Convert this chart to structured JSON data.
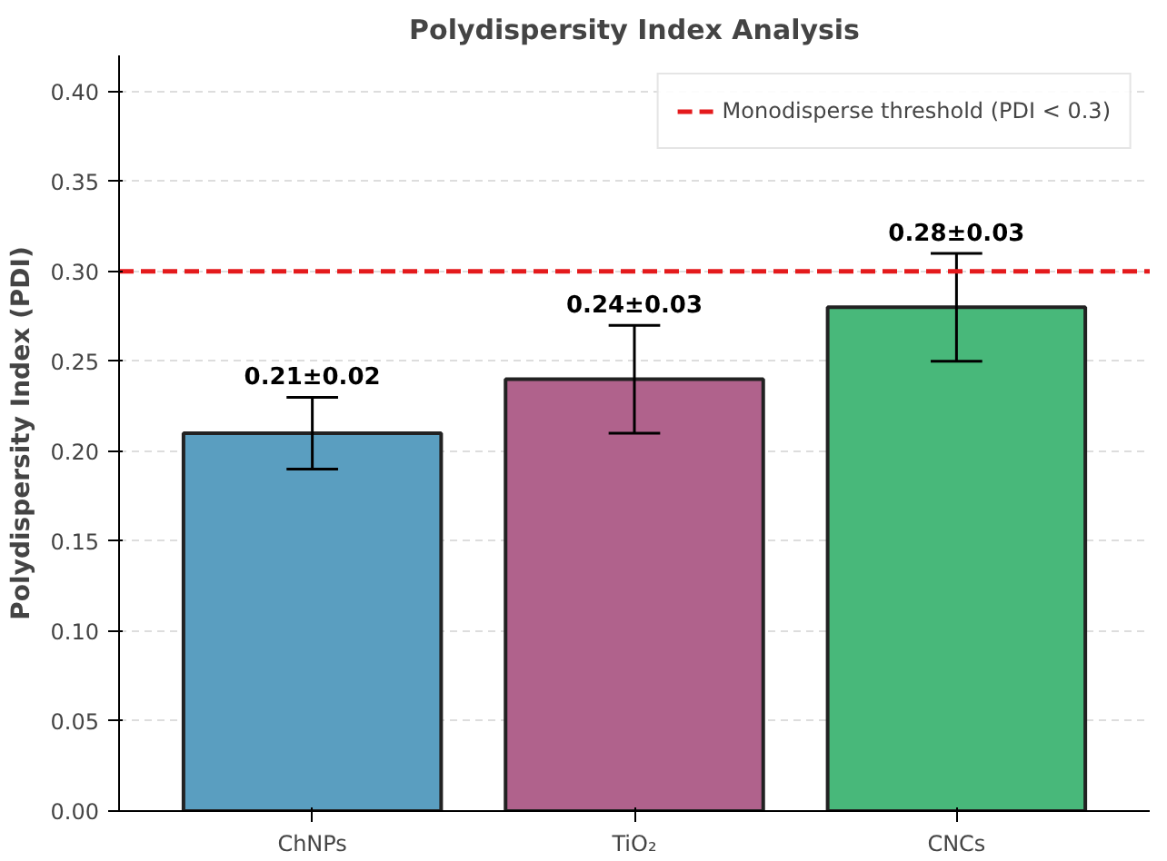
{
  "chart_data": {
    "type": "bar",
    "title": "Polydispersity Index Analysis",
    "ylabel": "Polydispersity Index (PDI)",
    "categories": [
      "ChNPs",
      "TiO₂",
      "CNCs"
    ],
    "values": [
      0.21,
      0.24,
      0.28
    ],
    "errors": [
      0.02,
      0.03,
      0.03
    ],
    "colors": [
      "#5a9ec0",
      "#b0628c",
      "#48b87a"
    ],
    "value_labels": [
      "0.21±0.02",
      "0.24±0.03",
      "0.28±0.03"
    ],
    "ylim": [
      0,
      0.42
    ],
    "yticks": [
      {
        "value": 0,
        "label": "0.00"
      },
      {
        "value": 0.05,
        "label": "0.05"
      },
      {
        "value": 0.1,
        "label": "0.10"
      },
      {
        "value": 0.15,
        "label": "0.15"
      },
      {
        "value": 0.2,
        "label": "0.20"
      },
      {
        "value": 0.25,
        "label": "0.25"
      },
      {
        "value": 0.3,
        "label": "0.30"
      },
      {
        "value": 0.35,
        "label": "0.35"
      },
      {
        "value": 0.4,
        "label": "0.40"
      }
    ],
    "ref_lines": [
      {
        "axis": "y",
        "value": 0.3,
        "label": "Monodisperse threshold (PDI < 0.3)",
        "color": "#e41a1c",
        "line_style": "dashed"
      }
    ],
    "grid": "y",
    "legend": "top right"
  }
}
